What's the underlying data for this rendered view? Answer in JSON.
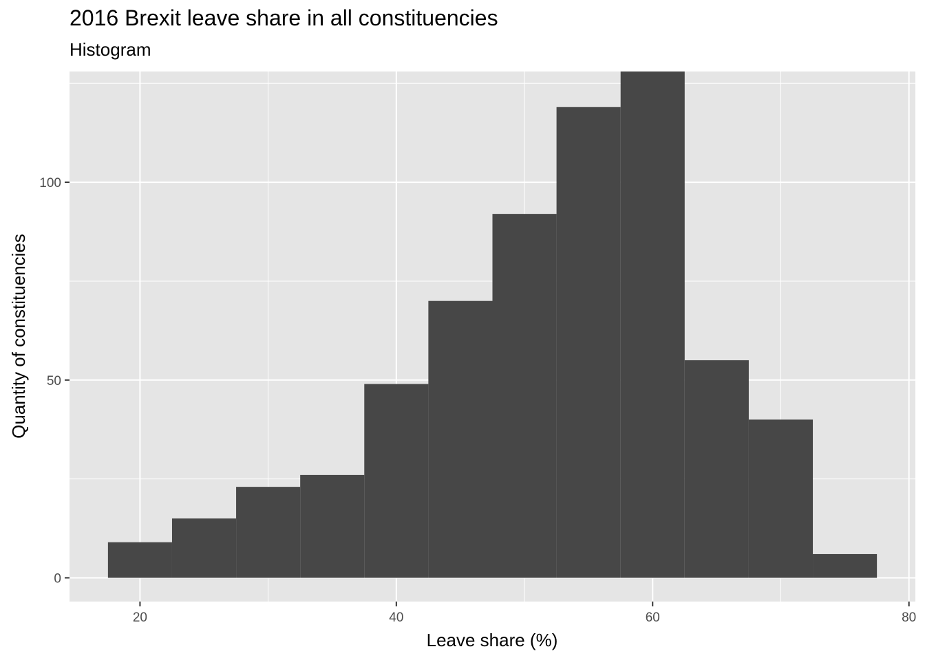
{
  "chart_data": {
    "type": "bar",
    "title": "2016 Brexit leave share in all constituencies",
    "subtitle": "Histogram",
    "xlabel": "Leave share (%)",
    "ylabel": "Quantity of constituencies",
    "xlim": [
      14.5,
      80.5
    ],
    "ylim": [
      -6,
      128
    ],
    "x_ticks": [
      20,
      40,
      60,
      80
    ],
    "y_ticks": [
      0,
      50,
      100
    ],
    "bin_width": 5,
    "bins": [
      {
        "x0": 17.5,
        "x1": 22.5,
        "count": 9
      },
      {
        "x0": 22.5,
        "x1": 27.5,
        "count": 15
      },
      {
        "x0": 27.5,
        "x1": 32.5,
        "count": 23
      },
      {
        "x0": 32.5,
        "x1": 37.5,
        "count": 26
      },
      {
        "x0": 37.5,
        "x1": 42.5,
        "count": 49
      },
      {
        "x0": 42.5,
        "x1": 47.5,
        "count": 70
      },
      {
        "x0": 47.5,
        "x1": 52.5,
        "count": 92
      },
      {
        "x0": 52.5,
        "x1": 57.5,
        "count": 119
      },
      {
        "x0": 57.5,
        "x1": 62.5,
        "count": 128
      },
      {
        "x0": 62.5,
        "x1": 67.5,
        "count": 55
      },
      {
        "x0": 67.5,
        "x1": 72.5,
        "count": 40
      },
      {
        "x0": 72.5,
        "x1": 77.5,
        "count": 6
      }
    ],
    "bar_color": "#474747",
    "panel_background": "#e5e5e5",
    "grid_color": "#ffffff",
    "grid": true,
    "legend": "none"
  }
}
